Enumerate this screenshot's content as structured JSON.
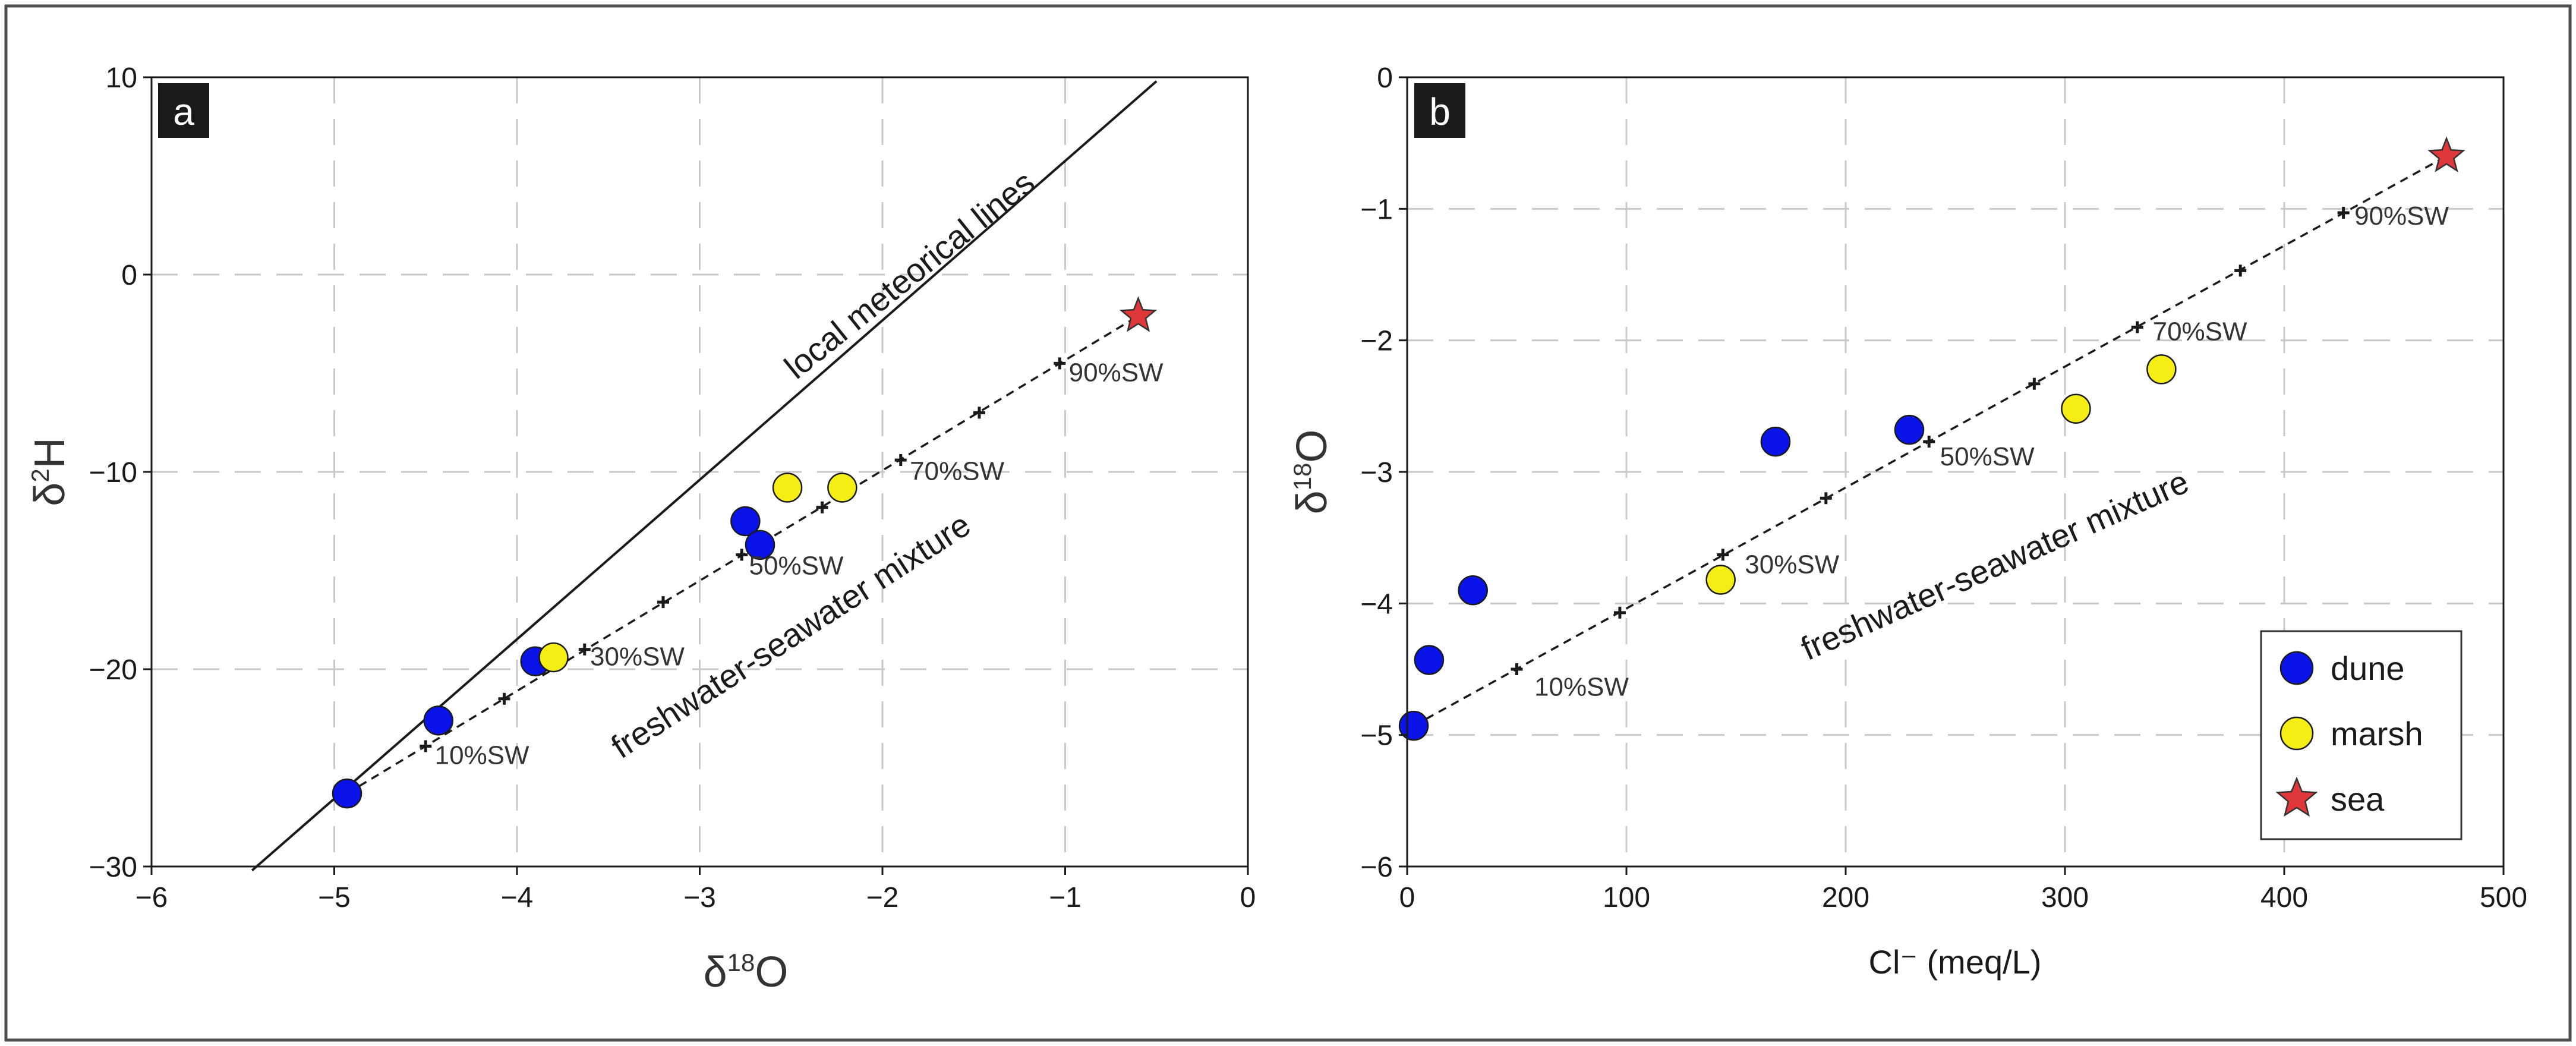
{
  "colors": {
    "dune": "#0a14e8",
    "marsh": "#f5ee14",
    "sea": "#e0383a",
    "grid": "#c8c8c8",
    "frame": "#4d4d4d"
  },
  "chart_data": [
    {
      "type": "scatter",
      "panel_label": "a",
      "xlabel": "δ18O",
      "ylabel": "δ2H",
      "xlim": [
        -6,
        0
      ],
      "ylim": [
        -30,
        10
      ],
      "x_ticks": [
        "−6",
        "−5",
        "−4",
        "−3",
        "−2",
        "−1",
        "0"
      ],
      "x_tick_values": [
        -6,
        -5,
        -4,
        -3,
        -2,
        -1,
        0
      ],
      "y_ticks": [
        "−30",
        "−20",
        "−10",
        "0",
        "10"
      ],
      "y_tick_values": [
        -30,
        -20,
        -10,
        0,
        10
      ],
      "grid": true,
      "series": [
        {
          "name": "dune",
          "marker": "circle",
          "x": [
            -4.93,
            -4.43,
            -3.9,
            -2.75,
            -2.67
          ],
          "y": [
            -26.3,
            -22.6,
            -19.6,
            -12.5,
            -13.7
          ]
        },
        {
          "name": "marsh",
          "marker": "circle",
          "x": [
            -3.8,
            -2.52,
            -2.22
          ],
          "y": [
            -19.4,
            -10.8,
            -10.8
          ]
        },
        {
          "name": "sea",
          "marker": "star",
          "x": [
            -0.6
          ],
          "y": [
            -2.1
          ]
        }
      ],
      "meteoric_line": {
        "label": "local meteorical lines",
        "x": [
          -5.45,
          -0.5
        ],
        "y": [
          -30.2,
          9.8
        ]
      },
      "mixing_line": {
        "label": "freshwater-seawater mixture",
        "x": [
          -4.93,
          -0.6
        ],
        "y": [
          -26.3,
          -2.1
        ],
        "tick_x": [
          -4.5,
          -4.07,
          -3.63,
          -3.2,
          -2.77,
          -2.33,
          -1.9,
          -1.47,
          -1.03
        ],
        "tick_y": [
          -23.9,
          -21.5,
          -19.0,
          -16.6,
          -14.2,
          -11.8,
          -9.4,
          -7.0,
          -4.5
        ]
      },
      "annotations": [
        {
          "text": "10%SW",
          "x": -4.45,
          "y": -24.8
        },
        {
          "text": "30%SW",
          "x": -3.6,
          "y": -19.8
        },
        {
          "text": "50%SW",
          "x": -2.73,
          "y": -15.2
        },
        {
          "text": "70%SW",
          "x": -1.85,
          "y": -10.4
        },
        {
          "text": "90%SW",
          "x": -0.98,
          "y": -5.4
        }
      ]
    },
    {
      "type": "scatter",
      "panel_label": "b",
      "xlabel": "Cl⁻ (meq/L)",
      "ylabel": "δ18O",
      "xlim": [
        0,
        500
      ],
      "ylim": [
        -6,
        0
      ],
      "x_ticks": [
        "0",
        "100",
        "200",
        "300",
        "400",
        "500"
      ],
      "x_tick_values": [
        0,
        100,
        200,
        300,
        400,
        500
      ],
      "y_ticks": [
        "−6",
        "−5",
        "−4",
        "−3",
        "−2",
        "−1",
        "0"
      ],
      "y_tick_values": [
        -6,
        -5,
        -4,
        -3,
        -2,
        -1,
        0
      ],
      "grid": true,
      "legend": {
        "position": "bottom-right",
        "entries": [
          "dune",
          "marsh",
          "sea"
        ]
      },
      "series": [
        {
          "name": "dune",
          "marker": "circle",
          "x": [
            3,
            10,
            30,
            168,
            229
          ],
          "y": [
            -4.93,
            -4.43,
            -3.9,
            -2.77,
            -2.68
          ]
        },
        {
          "name": "marsh",
          "marker": "circle",
          "x": [
            143,
            305,
            344
          ],
          "y": [
            -3.82,
            -2.52,
            -2.22
          ]
        },
        {
          "name": "sea",
          "marker": "star",
          "x": [
            474
          ],
          "y": [
            -0.6
          ]
        }
      ],
      "mixing_line": {
        "label": "freshwater-seawater mixture",
        "x": [
          3,
          474
        ],
        "y": [
          -4.93,
          -0.6
        ],
        "tick_x": [
          50,
          97,
          144,
          191,
          238,
          286,
          333,
          380,
          427
        ],
        "tick_y": [
          -4.5,
          -4.07,
          -3.63,
          -3.2,
          -2.77,
          -2.33,
          -1.9,
          -1.47,
          -1.03
        ]
      },
      "annotations": [
        {
          "text": "10%SW",
          "x": 58,
          "y": -4.7
        },
        {
          "text": "30%SW",
          "x": 154,
          "y": -3.77
        },
        {
          "text": "50%SW",
          "x": 243,
          "y": -2.95
        },
        {
          "text": "70%SW",
          "x": 340,
          "y": -2.0
        },
        {
          "text": "90%SW",
          "x": 432,
          "y": -1.12
        }
      ]
    }
  ]
}
